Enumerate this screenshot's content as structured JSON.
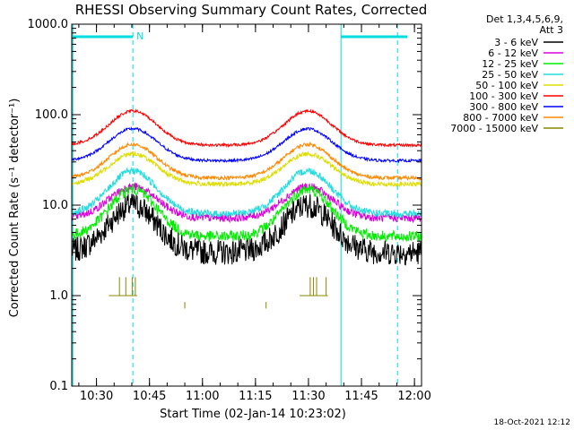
{
  "chart_data": {
    "type": "line",
    "title": "RHESSI Observing Summary Count Rates, Corrected",
    "xlabel": "Start Time (02-Jan-14 10:23:02)",
    "ylabel": "Corrected Count Rate (s⁻¹ detector⁻¹)",
    "yscale": "log",
    "ylim": [
      0.1,
      1000
    ],
    "xlim_minutes": [
      0,
      99
    ],
    "y_tick_labels": [
      "0.1",
      "1.0",
      "10.0",
      "100.0",
      "1000.0"
    ],
    "x_tick_labels": [
      "10:30",
      "10:45",
      "11:00",
      "11:15",
      "11:30",
      "11:45",
      "12:00"
    ],
    "x_tick_minutes": [
      7,
      22,
      37,
      52,
      67,
      82,
      97
    ],
    "x_minor_every_minutes": 5,
    "legend_header": [
      "Det 1,3,4,5,6,9,",
      "Att 3"
    ],
    "legend_position": "right",
    "markers": {
      "dashed_minutes": [
        17.3,
        92.2
      ],
      "solid_minutes": [
        0.3,
        76.2
      ],
      "top_bar_ranges_minutes": [
        [
          0.3,
          17.3
        ],
        [
          76.2,
          95.0
        ]
      ],
      "flag_label": "N"
    },
    "orbit_model": {
      "peak_minutes": [
        17.3,
        66.8
      ],
      "peak_width_minutes": 9.5
    },
    "series": [
      {
        "name": "3 - 6 keV",
        "color": "#000000",
        "base": 3.0,
        "peak": 10.0,
        "noise": 0.28
      },
      {
        "name": "6 - 12 keV",
        "color": "#dd00dd",
        "base": 7.2,
        "peak": 16.0,
        "noise": 0.09
      },
      {
        "name": "12 - 25 keV",
        "color": "#00ee00",
        "base": 4.5,
        "peak": 15.0,
        "noise": 0.12
      },
      {
        "name": "25 - 50 keV",
        "color": "#22dddd",
        "base": 8.0,
        "peak": 24.0,
        "noise": 0.08
      },
      {
        "name": "50 - 100 keV",
        "color": "#dddd00",
        "base": 17.0,
        "peak": 37.0,
        "noise": 0.05
      },
      {
        "name": "100 - 300 keV",
        "color": "#ff0000",
        "base": 46.0,
        "peak": 110.0,
        "noise": 0.03
      },
      {
        "name": "300 - 800 keV",
        "color": "#0000ff",
        "base": 31.0,
        "peak": 70.0,
        "noise": 0.03
      },
      {
        "name": "800 - 7000 keV",
        "color": "#ff8800",
        "base": 20.0,
        "peak": 47.0,
        "noise": 0.04
      },
      {
        "name": "7000 - 15000 keV",
        "color": "#888800",
        "base": 1.0,
        "peak": 1.0,
        "noise": 0.0
      }
    ]
  },
  "timestamp": "18-Oct-2021 12:12"
}
